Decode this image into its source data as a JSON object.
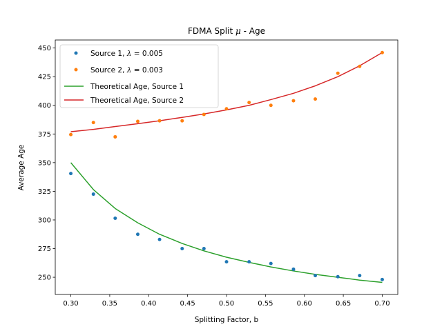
{
  "chart_data": {
    "type": "line",
    "title_main": "FDMA Split ",
    "title_symbol": "μ",
    "title_rest": " - Age",
    "xlabel": "Splitting Factor, b",
    "ylabel": "Average Age",
    "xlim": [
      0.28,
      0.72
    ],
    "ylim": [
      235,
      457
    ],
    "xticks": [
      0.3,
      0.35,
      0.4,
      0.45,
      0.5,
      0.55,
      0.6,
      0.65,
      0.7
    ],
    "xtick_labels": [
      "0.30",
      "0.35",
      "0.40",
      "0.45",
      "0.50",
      "0.55",
      "0.60",
      "0.65",
      "0.70"
    ],
    "yticks": [
      250,
      275,
      300,
      325,
      350,
      375,
      400,
      425,
      450
    ],
    "ytick_labels": [
      "250",
      "275",
      "300",
      "325",
      "350",
      "375",
      "400",
      "425",
      "450"
    ],
    "grid": false,
    "legend_position": "top-left",
    "x": [
      0.3,
      0.329,
      0.357,
      0.386,
      0.414,
      0.443,
      0.471,
      0.5,
      0.529,
      0.557,
      0.586,
      0.614,
      0.643,
      0.671,
      0.7
    ],
    "series": [
      {
        "kind": "scatter",
        "label_prefix": "Source 1, ",
        "label_symbol": "λ",
        "label_suffix": " = 0.005",
        "color": "#1f77b4",
        "values": [
          340.5,
          322.5,
          301.5,
          287.5,
          283,
          275,
          275,
          263.5,
          263.5,
          262,
          257,
          251.5,
          250.5,
          251.5,
          248
        ]
      },
      {
        "kind": "scatter",
        "label_prefix": "Source 2, ",
        "label_symbol": "λ",
        "label_suffix": " = 0.003",
        "color": "#ff7f0e",
        "values": [
          374.5,
          385,
          372.5,
          386,
          386.5,
          386.5,
          392,
          397,
          402.5,
          400,
          404,
          405.5,
          428,
          434,
          446
        ]
      },
      {
        "kind": "line",
        "label": "Theoretical Age, Source 1",
        "color": "#2ca02c",
        "values": [
          350,
          326.5,
          310,
          297.5,
          287.5,
          279.5,
          273,
          267.5,
          263,
          259,
          255.5,
          252.5,
          250,
          247.5,
          245.5
        ]
      },
      {
        "kind": "line",
        "label": "Theoretical Age, Source 2",
        "color": "#d62728",
        "values": [
          377,
          379,
          381.5,
          384,
          386.5,
          389.5,
          392.5,
          396,
          400,
          405,
          410.5,
          417,
          425,
          434.5,
          446
        ]
      }
    ]
  }
}
